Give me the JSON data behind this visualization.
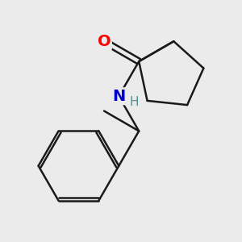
{
  "background_color": "#ebebeb",
  "bond_color": "#1a1a1a",
  "bond_width": 1.8,
  "atom_labels": {
    "O": {
      "color": "#ff0000",
      "fontsize": 14,
      "fontweight": "bold"
    },
    "N": {
      "color": "#0000cc",
      "fontsize": 14,
      "fontweight": "bold"
    },
    "H": {
      "color": "#4a9090",
      "fontsize": 11,
      "fontweight": "normal"
    }
  },
  "figsize": [
    3.0,
    3.0
  ],
  "dpi": 100
}
